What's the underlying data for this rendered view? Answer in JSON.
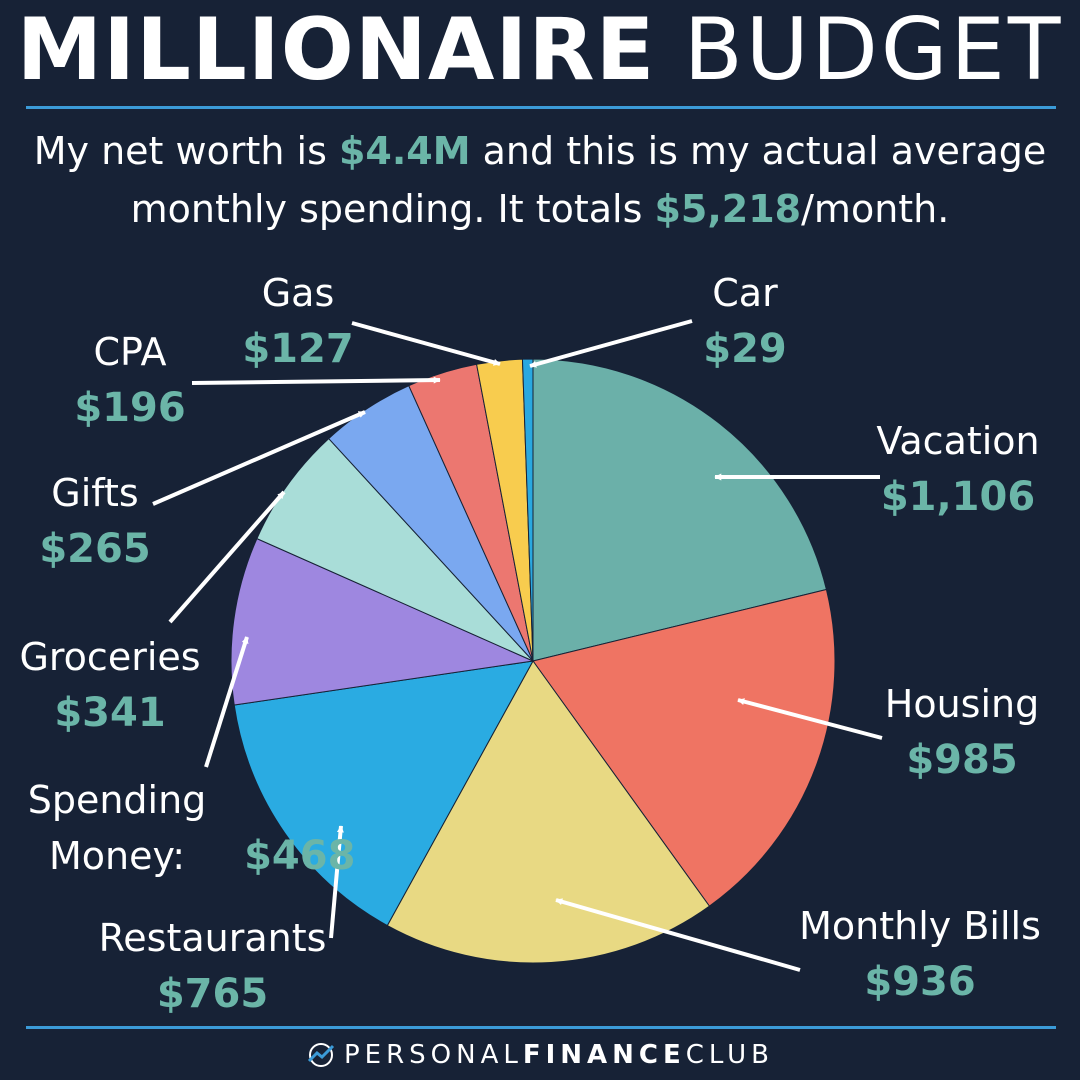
{
  "header": {
    "title_bold": "MILLIONAIRE",
    "title_light": "BUDGET",
    "line1_pre": "My net worth is ",
    "line1_hl": "$4.4M",
    "line1_post": " and this is my actual average",
    "line2_pre": "monthly spending. It totals ",
    "line2_hl": "$5,218",
    "line2_post": "/month."
  },
  "colors": {
    "background": "#172236",
    "accent": "#6bb5a8",
    "rule": "#3b9bd8"
  },
  "chart_data": {
    "type": "pie",
    "title": "",
    "slices": [
      {
        "name": "Vacation",
        "label": "$1,106",
        "value": 1106,
        "color": "#6bb0a9"
      },
      {
        "name": "Housing",
        "label": "$985",
        "value": 985,
        "color": "#ef7463"
      },
      {
        "name": "Monthly Bills",
        "label": "$936",
        "value": 936,
        "color": "#e8d983"
      },
      {
        "name": "Restaurants",
        "label": "$765",
        "value": 765,
        "color": "#2aabe2"
      },
      {
        "name": "Spending Money:",
        "label": "$468",
        "value": 468,
        "color": "#9e87e0"
      },
      {
        "name": "Groceries",
        "label": "$341",
        "value": 341,
        "color": "#a9ddd8"
      },
      {
        "name": "Gifts",
        "label": "$265",
        "value": 265,
        "color": "#7aa8f0"
      },
      {
        "name": "CPA",
        "label": "$196",
        "value": 196,
        "color": "#ec7770"
      },
      {
        "name": "Gas",
        "label": "$127",
        "value": 127,
        "color": "#f8cc4e"
      },
      {
        "name": "Car",
        "label": "$29",
        "value": 29,
        "color": "#2aa8e0"
      }
    ]
  },
  "footer": {
    "brand_light": "PERSONAL",
    "brand_bold": "FINANCE",
    "brand_end": "CLUB",
    "logo_icon": "trend-line-icon"
  }
}
